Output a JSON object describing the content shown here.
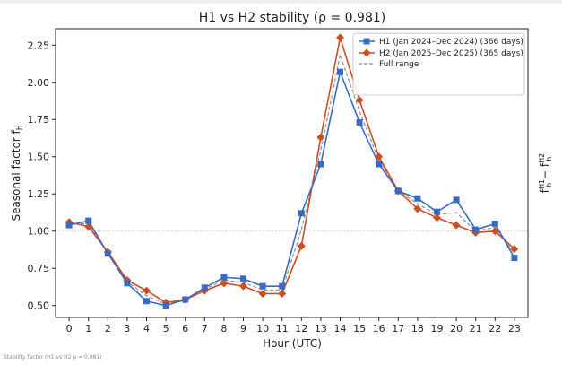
{
  "chart_data": {
    "type": "line",
    "title": "H1 vs H2 stability (ρ = 0.981)",
    "xlabel": "Hour (UTC)",
    "ylabel": "Seasonal factor f",
    "ylabel_subscript": "h",
    "right_ylabel": "f",
    "right_ylabel_parts": [
      "f",
      "H1",
      "h",
      " − f",
      "H2",
      "h"
    ],
    "categories": [
      0,
      1,
      2,
      3,
      4,
      5,
      6,
      7,
      8,
      9,
      10,
      11,
      12,
      13,
      14,
      15,
      16,
      17,
      18,
      19,
      20,
      21,
      22,
      23
    ],
    "xlim": [
      -0.7,
      23.7
    ],
    "ylim": [
      0.42,
      2.36
    ],
    "yticks": [
      0.5,
      0.75,
      1.0,
      1.25,
      1.5,
      1.75,
      2.0,
      2.25
    ],
    "ytick_labels": [
      "0.50",
      "0.75",
      "1.00",
      "1.25",
      "1.50",
      "1.75",
      "2.00",
      "2.25"
    ],
    "reference_line": 1.0,
    "series": [
      {
        "name": "H1 (Jan 2024–Dec 2024) (366 days)",
        "color": "#3a6bc4",
        "marker": "square",
        "values": [
          1.04,
          1.07,
          0.85,
          0.65,
          0.53,
          0.5,
          0.54,
          0.62,
          0.69,
          0.68,
          0.63,
          0.63,
          1.12,
          1.45,
          2.07,
          1.73,
          1.45,
          1.27,
          1.22,
          1.13,
          1.21,
          1.01,
          1.05,
          0.82
        ]
      },
      {
        "name": "H2 (Jan 2025–Dec 2025) (365 days)",
        "color": "#cc4e23",
        "marker": "diamond",
        "values": [
          1.06,
          1.03,
          0.86,
          0.67,
          0.6,
          0.52,
          0.54,
          0.6,
          0.65,
          0.63,
          0.58,
          0.58,
          0.9,
          1.63,
          2.3,
          1.88,
          1.5,
          1.27,
          1.15,
          1.09,
          1.04,
          0.99,
          1.0,
          0.88
        ]
      },
      {
        "name": "Full range",
        "color": "#888888",
        "style": "dashed",
        "values": [
          1.05,
          1.05,
          0.855,
          0.66,
          0.565,
          0.51,
          0.54,
          0.61,
          0.67,
          0.655,
          0.605,
          0.605,
          1.01,
          1.54,
          2.185,
          1.805,
          1.475,
          1.27,
          1.185,
          1.11,
          1.125,
          1.0,
          1.025,
          0.85
        ]
      }
    ],
    "legend_position": "top-right",
    "footer_note": "Stability factor (H1 vs H2 ρ = 0.981)"
  }
}
